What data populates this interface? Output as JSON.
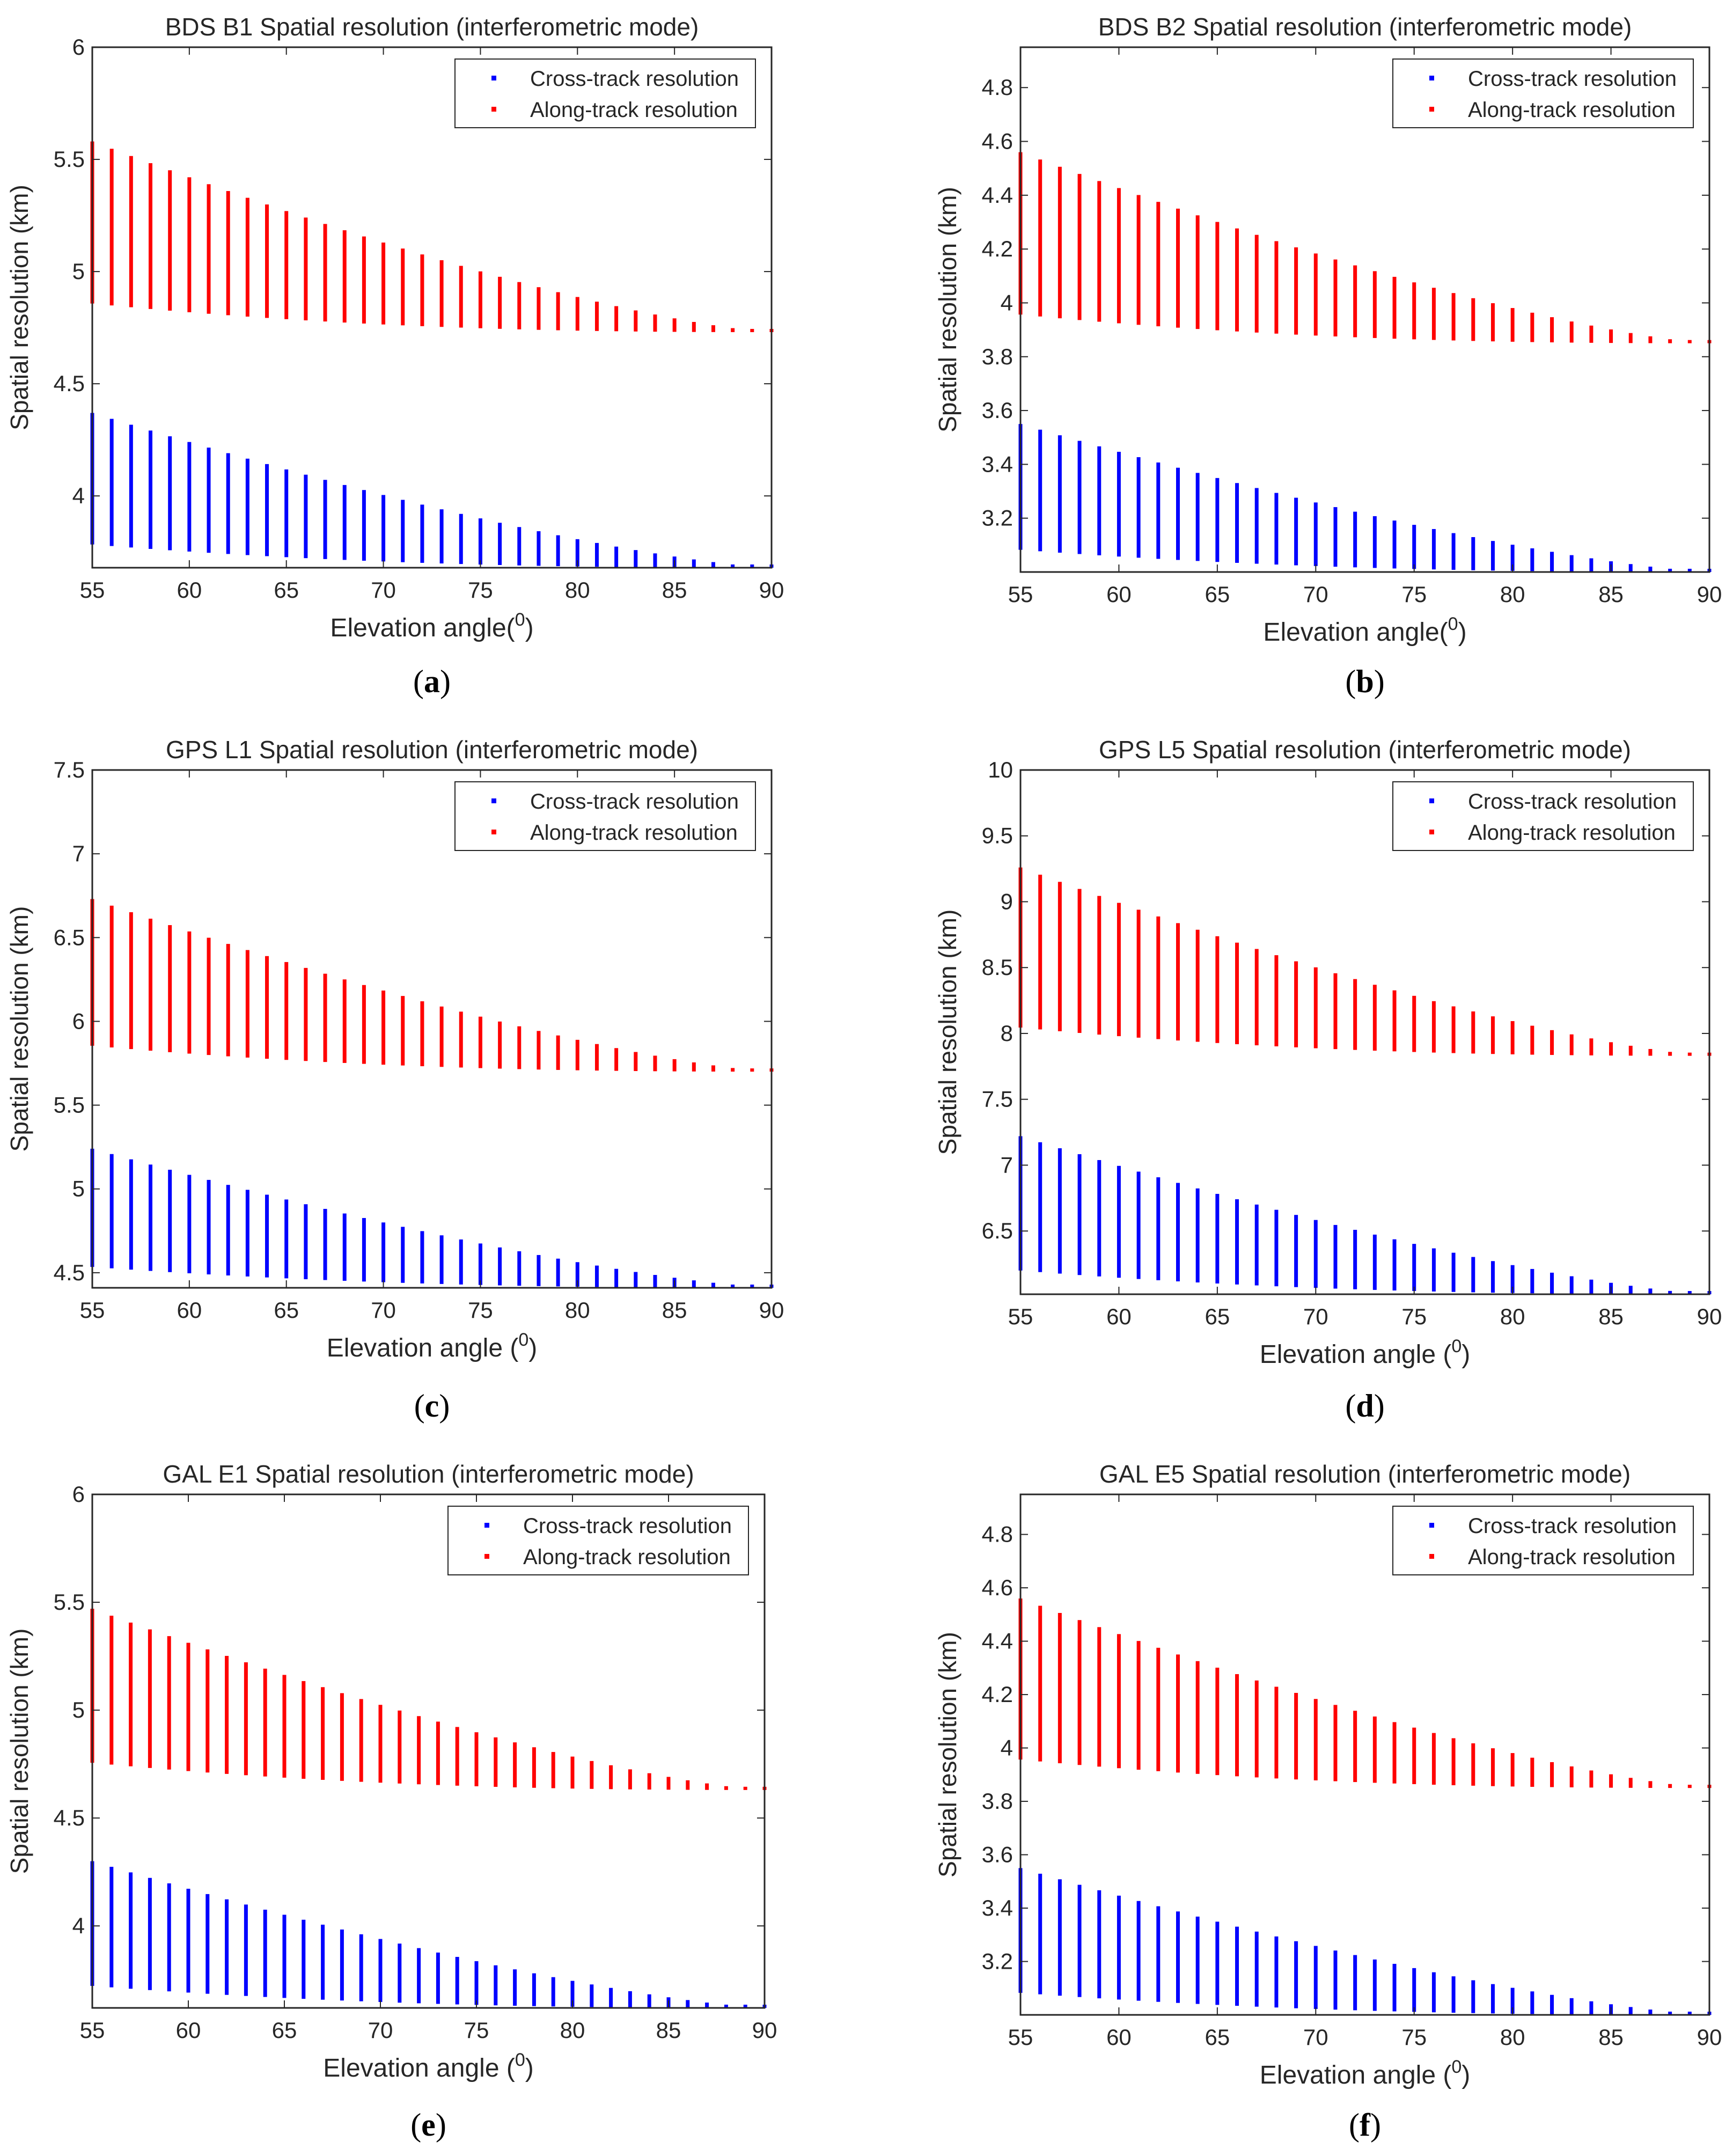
{
  "colors": {
    "cross": "#0000ff",
    "along": "#ff0000",
    "axis": "#262626",
    "text": "#262626"
  },
  "chart_data": [
    {
      "type": "scatter",
      "panel": "(a)",
      "panel_letter": "a",
      "title": "BDS B1  Spatial resolution (interferometric mode)",
      "xlabel": "Elevation angle(",
      "xlabel_sup": "0",
      "xlabel_close": ")",
      "ylabel": "Spatial resolution (km)",
      "xlim": [
        55,
        90
      ],
      "ylim": [
        3.68,
        6.0
      ],
      "xticks": [
        55,
        60,
        65,
        70,
        75,
        80,
        85,
        90
      ],
      "yticks": [
        4,
        4.5,
        5,
        5.5,
        6
      ],
      "legend": [
        "Cross-track resolution",
        "Along-track resolution"
      ],
      "legend_position": "top-right",
      "x": [
        55,
        56,
        57,
        58,
        59,
        60,
        61,
        62,
        63,
        64,
        65,
        66,
        67,
        68,
        69,
        70,
        71,
        72,
        73,
        74,
        75,
        76,
        77,
        78,
        79,
        80,
        81,
        82,
        83,
        84,
        85,
        86,
        87,
        88,
        89,
        90
      ],
      "series": [
        {
          "name": "Cross-track resolution",
          "min": 3.68,
          "range_at_55": 0.69,
          "range_at_90": 0.0
        },
        {
          "name": "Along-track resolution",
          "min": 4.73,
          "range_at_55": 0.85,
          "range_at_90": 0.0
        }
      ]
    },
    {
      "type": "scatter",
      "panel": "(b)",
      "panel_letter": "b",
      "title": "BDS B2  Spatial resolution (interferometric mode)",
      "xlabel": "Elevation angle(",
      "xlabel_sup": "0",
      "xlabel_close": ")",
      "ylabel": "Spatial resolution (km)",
      "xlim": [
        55,
        90
      ],
      "ylim": [
        3.0,
        4.95
      ],
      "xticks": [
        55,
        60,
        65,
        70,
        75,
        80,
        85,
        90
      ],
      "yticks": [
        3.2,
        3.4,
        3.6,
        3.8,
        4,
        4.2,
        4.4,
        4.6,
        4.8
      ],
      "legend": [
        "Cross-track resolution",
        "Along-track resolution"
      ],
      "legend_position": "top-right",
      "x": [
        55,
        56,
        57,
        58,
        59,
        60,
        61,
        62,
        63,
        64,
        65,
        66,
        67,
        68,
        69,
        70,
        71,
        72,
        73,
        74,
        75,
        76,
        77,
        78,
        79,
        80,
        81,
        82,
        83,
        84,
        85,
        86,
        87,
        88,
        89,
        90
      ],
      "series": [
        {
          "name": "Cross-track resolution",
          "min": 3.0,
          "range_at_55": 0.55,
          "range_at_90": 0.0
        },
        {
          "name": "Along-track resolution",
          "min": 3.85,
          "range_at_55": 0.71,
          "range_at_90": 0.0
        }
      ]
    },
    {
      "type": "scatter",
      "panel": "(c)",
      "panel_letter": "c",
      "title": "GPS L1  Spatial resolution (interferometric mode)",
      "xlabel": "Elevation angle (",
      "xlabel_sup": "0",
      "xlabel_close": ")",
      "ylabel": "Spatial resolution (km)",
      "xlim": [
        55,
        90
      ],
      "ylim": [
        4.41,
        7.5
      ],
      "xticks": [
        55,
        60,
        65,
        70,
        75,
        80,
        85,
        90
      ],
      "yticks": [
        4.5,
        5,
        5.5,
        6,
        6.5,
        7,
        7.5
      ],
      "legend": [
        "Cross-track resolution",
        "Along-track resolution"
      ],
      "legend_position": "top-right",
      "x": [
        55,
        56,
        57,
        58,
        59,
        60,
        61,
        62,
        63,
        64,
        65,
        66,
        67,
        68,
        69,
        70,
        71,
        72,
        73,
        74,
        75,
        76,
        77,
        78,
        79,
        80,
        81,
        82,
        83,
        84,
        85,
        86,
        87,
        88,
        89,
        90
      ],
      "series": [
        {
          "name": "Cross-track resolution",
          "min": 4.41,
          "range_at_55": 0.83,
          "range_at_90": 0.0
        },
        {
          "name": "Along-track resolution",
          "min": 5.7,
          "range_at_55": 1.03,
          "range_at_90": 0.0
        }
      ]
    },
    {
      "type": "scatter",
      "panel": "(d)",
      "panel_letter": "d",
      "title": "GPS L5  Spatial resolution (interferometric mode)",
      "xlabel": "Elevation angle (",
      "xlabel_sup": "0",
      "xlabel_close": ")",
      "ylabel": "Spatial resolution (km)",
      "xlim": [
        55,
        90
      ],
      "ylim": [
        6.02,
        10.0
      ],
      "xticks": [
        55,
        60,
        65,
        70,
        75,
        80,
        85,
        90
      ],
      "yticks": [
        6.5,
        7,
        7.5,
        8,
        8.5,
        9,
        9.5,
        10
      ],
      "legend": [
        "Cross-track resolution",
        "Along-track resolution"
      ],
      "legend_position": "top-right",
      "x": [
        55,
        56,
        57,
        58,
        59,
        60,
        61,
        62,
        63,
        64,
        65,
        66,
        67,
        68,
        69,
        70,
        71,
        72,
        73,
        74,
        75,
        76,
        77,
        78,
        79,
        80,
        81,
        82,
        83,
        84,
        85,
        86,
        87,
        88,
        89,
        90
      ],
      "series": [
        {
          "name": "Cross-track resolution",
          "min": 6.02,
          "range_at_55": 1.2,
          "range_at_90": 0.0
        },
        {
          "name": "Along-track resolution",
          "min": 7.83,
          "range_at_55": 1.43,
          "range_at_90": 0.0
        }
      ]
    },
    {
      "type": "scatter",
      "panel": "(e)",
      "panel_letter": "e",
      "title": "GAL E1  Spatial resolution (interferometric mode)",
      "xlabel": "Elevation angle (",
      "xlabel_sup": "0",
      "xlabel_close": ")",
      "ylabel": "Spatial resolution (km)",
      "xlim": [
        55,
        90
      ],
      "ylim": [
        3.62,
        6.0
      ],
      "xticks": [
        55,
        60,
        65,
        70,
        75,
        80,
        85,
        90
      ],
      "yticks": [
        4,
        4.5,
        5,
        5.5,
        6
      ],
      "legend": [
        "Cross-track resolution",
        "Along-track resolution"
      ],
      "legend_position": "top-right",
      "x": [
        55,
        56,
        57,
        58,
        59,
        60,
        61,
        62,
        63,
        64,
        65,
        66,
        67,
        68,
        69,
        70,
        71,
        72,
        73,
        74,
        75,
        76,
        77,
        78,
        79,
        80,
        81,
        82,
        83,
        84,
        85,
        86,
        87,
        88,
        89,
        90
      ],
      "series": [
        {
          "name": "Cross-track resolution",
          "min": 3.62,
          "range_at_55": 0.68,
          "range_at_90": 0.0
        },
        {
          "name": "Along-track resolution",
          "min": 4.63,
          "range_at_55": 0.84,
          "range_at_90": 0.0
        }
      ]
    },
    {
      "type": "scatter",
      "panel": "(f)",
      "panel_letter": "f",
      "title": "GAL E5  Spatial resolution (interferometric mode)",
      "xlabel": "Elevation angle (",
      "xlabel_sup": "0",
      "xlabel_close": ")",
      "ylabel": "Spatial resolution (km)",
      "xlim": [
        55,
        90
      ],
      "ylim": [
        3.0,
        4.95
      ],
      "xticks": [
        55,
        60,
        65,
        70,
        75,
        80,
        85,
        90
      ],
      "yticks": [
        3.2,
        3.4,
        3.6,
        3.8,
        4,
        4.2,
        4.4,
        4.6,
        4.8
      ],
      "legend": [
        "Cross-track resolution",
        "Along-track resolution"
      ],
      "legend_position": "top-right",
      "x": [
        55,
        56,
        57,
        58,
        59,
        60,
        61,
        62,
        63,
        64,
        65,
        66,
        67,
        68,
        69,
        70,
        71,
        72,
        73,
        74,
        75,
        76,
        77,
        78,
        79,
        80,
        81,
        82,
        83,
        84,
        85,
        86,
        87,
        88,
        89,
        90
      ],
      "series": [
        {
          "name": "Cross-track resolution",
          "min": 3.0,
          "range_at_55": 0.55,
          "range_at_90": 0.0
        },
        {
          "name": "Along-track resolution",
          "min": 3.85,
          "range_at_55": 0.71,
          "range_at_90": 0.0
        }
      ]
    }
  ]
}
